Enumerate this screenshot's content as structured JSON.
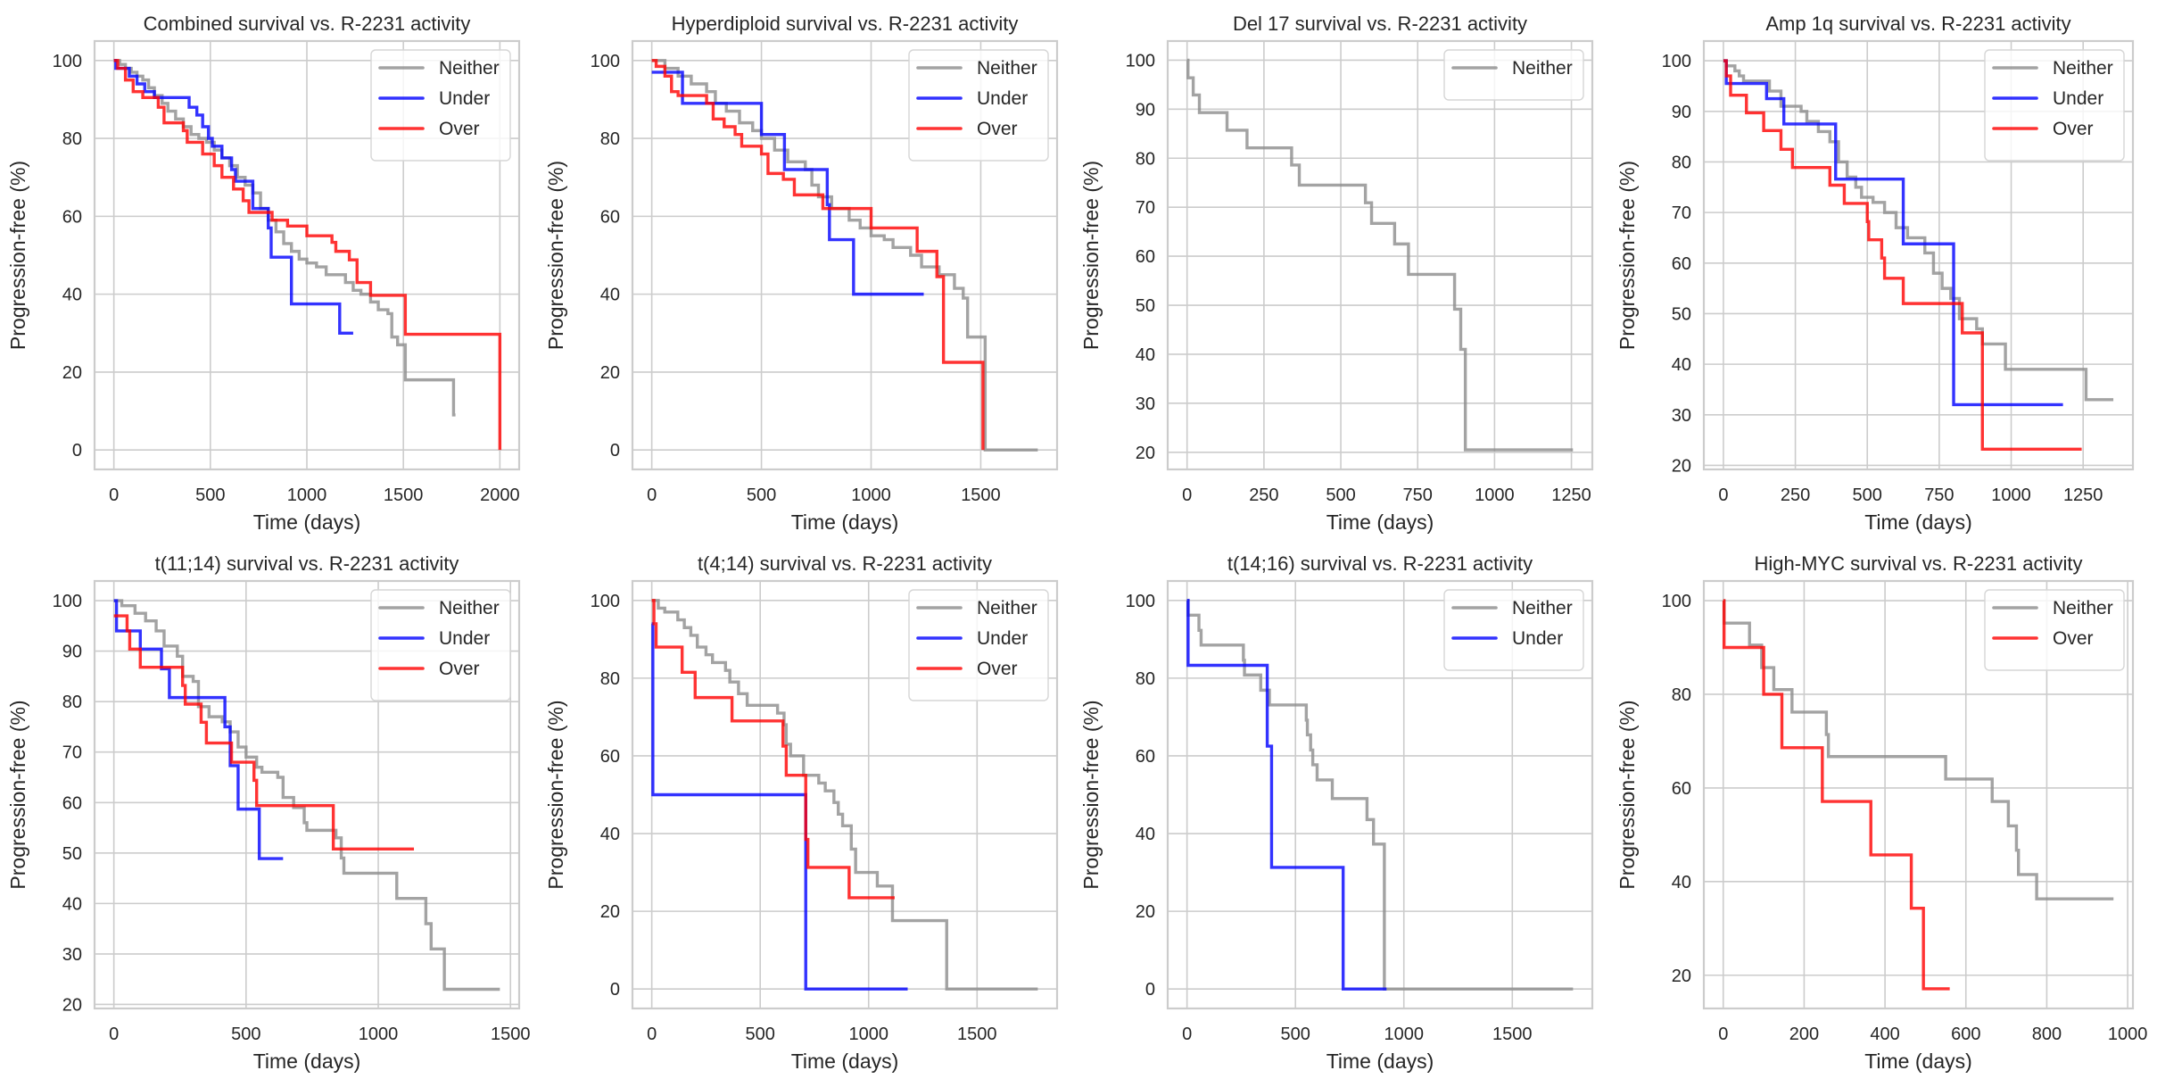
{
  "figure": {
    "title_suffix": "survival vs. R-2231 activity"
  },
  "series_colors": {
    "Neither": "#8c8c8c",
    "Under": "#0000ff",
    "Over": "#ff0000"
  },
  "chart_data": [
    {
      "type": "line",
      "step": "post",
      "title": "Combined survival vs. R-2231 activity",
      "xlabel": "Time (days)",
      "ylabel": "Progression-free (%)",
      "xlim": [
        -100,
        2100
      ],
      "ylim": [
        -5,
        105
      ],
      "xticks": [
        0,
        500,
        1000,
        1500,
        2000
      ],
      "yticks": [
        0,
        20,
        40,
        60,
        80,
        100
      ],
      "grid": true,
      "legend_position": "top-right",
      "legend": [
        "Neither",
        "Under",
        "Over"
      ],
      "series": [
        {
          "name": "Neither",
          "x": [
            0,
            30,
            60,
            90,
            120,
            150,
            180,
            210,
            250,
            280,
            320,
            360,
            400,
            440,
            480,
            520,
            560,
            600,
            640,
            680,
            720,
            760,
            800,
            840,
            880,
            920,
            960,
            1000,
            1050,
            1100,
            1150,
            1200,
            1240,
            1280,
            1330,
            1370,
            1420,
            1440,
            1470,
            1510,
            1760,
            1770
          ],
          "y": [
            100,
            99,
            98,
            97,
            96,
            95,
            93,
            91,
            89,
            87,
            85,
            83,
            81,
            80,
            79,
            77,
            75,
            73,
            70,
            68,
            66,
            62,
            59,
            56,
            53,
            51,
            49,
            48,
            47,
            45,
            45,
            43,
            41,
            40,
            38,
            36,
            35,
            29,
            27,
            18,
            9,
            9
          ]
        },
        {
          "name": "Under",
          "x": [
            0,
            10,
            80,
            120,
            160,
            210,
            390,
            430,
            460,
            490,
            510,
            560,
            610,
            630,
            720,
            800,
            815,
            920,
            1170,
            1240
          ],
          "y": [
            100,
            98,
            96,
            94,
            92,
            90.5,
            88,
            86,
            83,
            80,
            78,
            75,
            72,
            69,
            62,
            57,
            49.5,
            37.5,
            30,
            30
          ]
        },
        {
          "name": "Over",
          "x": [
            0,
            20,
            60,
            100,
            150,
            230,
            260,
            360,
            380,
            460,
            520,
            560,
            620,
            670,
            700,
            820,
            900,
            1000,
            1130,
            1150,
            1220,
            1260,
            1330,
            1510,
            2000
          ],
          "y": [
            100,
            98,
            95,
            92,
            90.5,
            88,
            84,
            82,
            79,
            76,
            73,
            70,
            67,
            64,
            61,
            59,
            57.5,
            55,
            53.3,
            51,
            48.8,
            43,
            39.7,
            29.7,
            0
          ]
        }
      ]
    },
    {
      "type": "line",
      "step": "post",
      "title": "Hyperdiploid survival vs. R-2231 activity",
      "xlabel": "Time (days)",
      "ylabel": "Progression-free (%)",
      "xlim": [
        -88,
        1848
      ],
      "ylim": [
        -5,
        105
      ],
      "xticks": [
        0,
        500,
        1000,
        1500
      ],
      "yticks": [
        0,
        20,
        40,
        60,
        80,
        100
      ],
      "grid": true,
      "legend_position": "top-right",
      "legend": [
        "Neither",
        "Under",
        "Over"
      ],
      "series": [
        {
          "name": "Neither",
          "x": [
            0,
            60,
            120,
            180,
            250,
            290,
            340,
            400,
            460,
            500,
            560,
            620,
            700,
            730,
            760,
            820,
            900,
            950,
            1000,
            1060,
            1100,
            1180,
            1230,
            1310,
            1380,
            1420,
            1440,
            1520,
            1760
          ],
          "y": [
            100,
            98,
            96,
            94,
            92,
            89,
            87,
            84,
            82,
            80,
            77,
            74,
            72,
            68,
            65,
            62,
            59,
            57,
            55,
            54,
            52,
            50,
            47,
            45,
            41.5,
            39,
            29,
            0,
            0
          ]
        },
        {
          "name": "Under",
          "x": [
            0,
            140,
            500,
            605,
            800,
            810,
            920,
            1240
          ],
          "y": [
            97,
            89,
            81,
            72,
            63,
            54,
            40,
            40
          ]
        },
        {
          "name": "Over",
          "x": [
            0,
            20,
            60,
            90,
            120,
            250,
            280,
            330,
            380,
            410,
            500,
            530,
            600,
            650,
            780,
            1000,
            1210,
            1300,
            1330,
            1510
          ],
          "y": [
            100,
            98.5,
            96,
            92,
            91,
            89,
            85,
            83,
            81,
            78,
            76,
            71,
            69.5,
            65.5,
            62,
            57,
            51,
            44.5,
            22.5,
            0
          ]
        }
      ]
    },
    {
      "type": "line",
      "step": "post",
      "title": "Del 17 survival vs. R-2231 activity",
      "xlabel": "Time (days)",
      "ylabel": "Progression-free (%)",
      "xlim": [
        -63,
        1318
      ],
      "ylim": [
        16.5,
        103.9
      ],
      "xticks": [
        0,
        250,
        500,
        750,
        1000,
        1250
      ],
      "yticks": [
        20,
        30,
        40,
        50,
        60,
        70,
        80,
        90,
        100
      ],
      "grid": true,
      "legend_position": "top-right",
      "legend": [
        "Neither"
      ],
      "series": [
        {
          "name": "Neither",
          "x": [
            0,
            3,
            20,
            40,
            130,
            195,
            340,
            365,
            580,
            600,
            675,
            720,
            870,
            890,
            905,
            1255
          ],
          "y": [
            100,
            96.4,
            92.9,
            89.3,
            85.7,
            82.1,
            78.6,
            74.5,
            70.9,
            66.7,
            62.5,
            56.3,
            49.2,
            41,
            20.5,
            20.5
          ]
        }
      ]
    },
    {
      "type": "line",
      "step": "post",
      "title": "Amp 1q survival vs. R-2231 activity",
      "xlabel": "Time (days)",
      "ylabel": "Progression-free (%)",
      "xlim": [
        -68,
        1423
      ],
      "ylim": [
        19.2,
        103.9
      ],
      "xticks": [
        0,
        250,
        500,
        750,
        1000,
        1250
      ],
      "yticks": [
        20,
        30,
        40,
        50,
        60,
        70,
        80,
        90,
        100
      ],
      "grid": true,
      "legend_position": "top-right",
      "legend": [
        "Neither",
        "Under",
        "Over"
      ],
      "series": [
        {
          "name": "Neither",
          "x": [
            0,
            10,
            40,
            55,
            70,
            160,
            200,
            270,
            290,
            330,
            370,
            400,
            430,
            460,
            480,
            520,
            560,
            600,
            640,
            700,
            730,
            760,
            790,
            820,
            880,
            900,
            980,
            1260,
            1355
          ],
          "y": [
            100,
            99,
            98,
            97,
            96,
            94,
            91,
            90,
            88,
            86,
            84,
            80,
            77,
            75,
            73,
            72,
            70,
            67,
            65,
            62,
            58,
            55,
            53,
            49,
            47,
            44,
            39,
            33,
            33
          ]
        },
        {
          "name": "Under",
          "x": [
            0,
            10,
            150,
            210,
            390,
            625,
            800,
            1180
          ],
          "y": [
            100,
            95.5,
            92.5,
            87.5,
            76.6,
            63.8,
            32,
            32
          ]
        },
        {
          "name": "Over",
          "x": [
            0,
            10,
            25,
            80,
            140,
            200,
            240,
            370,
            420,
            500,
            505,
            550,
            560,
            625,
            830,
            895,
            900,
            1245
          ],
          "y": [
            100,
            97,
            93.2,
            89.7,
            86.2,
            82.5,
            78.9,
            75.4,
            71.8,
            68.2,
            64.6,
            61,
            57,
            52,
            46.2,
            46.2,
            23.2,
            23.2
          ]
        }
      ]
    },
    {
      "type": "line",
      "step": "post",
      "title": "t(11;14) survival vs. R-2231 activity",
      "xlabel": "Time (days)",
      "ylabel": "Progression-free (%)",
      "xlim": [
        -73,
        1533
      ],
      "ylim": [
        19.2,
        103.9
      ],
      "xticks": [
        0,
        500,
        1000,
        1500
      ],
      "yticks": [
        20,
        30,
        40,
        50,
        60,
        70,
        80,
        90,
        100
      ],
      "grid": true,
      "legend_position": "top-right",
      "legend": [
        "Neither",
        "Under",
        "Over"
      ],
      "series": [
        {
          "name": "Neither",
          "x": [
            0,
            30,
            80,
            120,
            160,
            190,
            240,
            260,
            300,
            320,
            360,
            410,
            440,
            470,
            500,
            540,
            560,
            620,
            640,
            680,
            720,
            730,
            840,
            860,
            870,
            1070,
            1180,
            1200,
            1250,
            1460
          ],
          "y": [
            100,
            99,
            97.5,
            96,
            94,
            91,
            89,
            85,
            84,
            79,
            77,
            76,
            74,
            71,
            69,
            67,
            66,
            65,
            61,
            59,
            56,
            54.5,
            53,
            49,
            46,
            41,
            36,
            31,
            23,
            23
          ]
        },
        {
          "name": "Under",
          "x": [
            0,
            10,
            100,
            180,
            210,
            420,
            440,
            470,
            480,
            550,
            640
          ],
          "y": [
            100,
            94,
            90.4,
            86.5,
            80.8,
            75,
            67.3,
            58.7,
            58.7,
            48.9,
            48.9
          ]
        },
        {
          "name": "Over",
          "x": [
            0,
            50,
            60,
            100,
            260,
            270,
            330,
            350,
            445,
            530,
            540,
            560,
            830,
            1135
          ],
          "y": [
            97,
            94,
            90.4,
            86.8,
            83.2,
            79.5,
            75.9,
            71.8,
            68,
            64.4,
            59.4,
            59.4,
            50.8,
            50.8
          ]
        }
      ]
    },
    {
      "type": "line",
      "step": "post",
      "title": "t(4;14) survival vs. R-2231 activity",
      "xlabel": "Time (days)",
      "ylabel": "Progression-free (%)",
      "xlim": [
        -89,
        1869
      ],
      "ylim": [
        -5,
        105
      ],
      "xticks": [
        0,
        500,
        1000,
        1500
      ],
      "yticks": [
        0,
        20,
        40,
        60,
        80,
        100
      ],
      "grid": true,
      "legend_position": "top-right",
      "legend": [
        "Neither",
        "Under",
        "Over"
      ],
      "series": [
        {
          "name": "Neither",
          "x": [
            0,
            30,
            60,
            120,
            150,
            180,
            210,
            250,
            280,
            340,
            360,
            400,
            440,
            580,
            610,
            620,
            640,
            700,
            770,
            800,
            840,
            860,
            880,
            920,
            940,
            1040,
            1110,
            1360,
            1780
          ],
          "y": [
            100,
            98,
            97,
            95,
            93,
            91,
            88,
            86,
            84,
            82,
            79,
            76,
            73,
            71,
            68,
            63,
            60,
            55,
            53,
            51,
            48,
            45,
            42,
            36,
            30,
            26.5,
            17.6,
            0,
            0
          ]
        },
        {
          "name": "Under",
          "x": [
            0,
            5,
            710,
            1180
          ],
          "y": [
            94,
            50,
            0,
            0
          ]
        },
        {
          "name": "Over",
          "x": [
            0,
            10,
            20,
            140,
            200,
            370,
            605,
            620,
            710,
            720,
            910,
            1120
          ],
          "y": [
            100,
            94,
            88,
            81.5,
            75,
            69,
            62.5,
            55,
            38.5,
            31.3,
            23.5,
            23.5
          ]
        }
      ]
    },
    {
      "type": "line",
      "step": "post",
      "title": "t(14;16) survival vs. R-2231 activity",
      "xlabel": "Time (days)",
      "ylabel": "Progression-free (%)",
      "xlim": [
        -89,
        1869
      ],
      "ylim": [
        -5,
        105
      ],
      "xticks": [
        0,
        500,
        1000,
        1500
      ],
      "yticks": [
        0,
        20,
        40,
        60,
        80,
        100
      ],
      "grid": true,
      "legend_position": "top-right",
      "legend": [
        "Neither",
        "Under"
      ],
      "series": [
        {
          "name": "Neither",
          "x": [
            0,
            5,
            55,
            65,
            260,
            265,
            340,
            380,
            550,
            555,
            570,
            580,
            600,
            670,
            830,
            860,
            910,
            1780
          ],
          "y": [
            100,
            96.2,
            92.3,
            88.5,
            84.6,
            80.8,
            76.9,
            73.1,
            69.2,
            65.4,
            61.5,
            57.7,
            53.8,
            49,
            43.6,
            37.3,
            0,
            0
          ]
        },
        {
          "name": "Under",
          "x": [
            0,
            5,
            370,
            390,
            720,
            920
          ],
          "y": [
            100,
            83.3,
            62.5,
            31.3,
            0,
            0
          ]
        }
      ]
    },
    {
      "type": "line",
      "step": "post",
      "title": "High-MYC survival vs. R-2231 activity",
      "xlabel": "Time (days)",
      "ylabel": "Progression-free (%)",
      "xlim": [
        -48,
        1013
      ],
      "ylim": [
        12.9,
        104.2
      ],
      "xticks": [
        0,
        200,
        400,
        600,
        800,
        1000
      ],
      "yticks": [
        20,
        40,
        60,
        80,
        100
      ],
      "grid": true,
      "legend_position": "top-right",
      "legend": [
        "Neither",
        "Over"
      ],
      "series": [
        {
          "name": "Neither",
          "x": [
            0,
            2,
            65,
            95,
            125,
            170,
            255,
            260,
            550,
            665,
            705,
            725,
            730,
            775,
            965
          ],
          "y": [
            100,
            95.2,
            90.5,
            85.7,
            81,
            76.2,
            71.4,
            66.7,
            61.9,
            57.1,
            51.9,
            46.7,
            41.5,
            36.3,
            36.3
          ]
        },
        {
          "name": "Over",
          "x": [
            0,
            2,
            100,
            145,
            245,
            365,
            465,
            495,
            560
          ],
          "y": [
            100,
            90,
            80,
            68.6,
            57.1,
            45.7,
            34.3,
            17.1,
            17.1
          ]
        }
      ]
    }
  ]
}
